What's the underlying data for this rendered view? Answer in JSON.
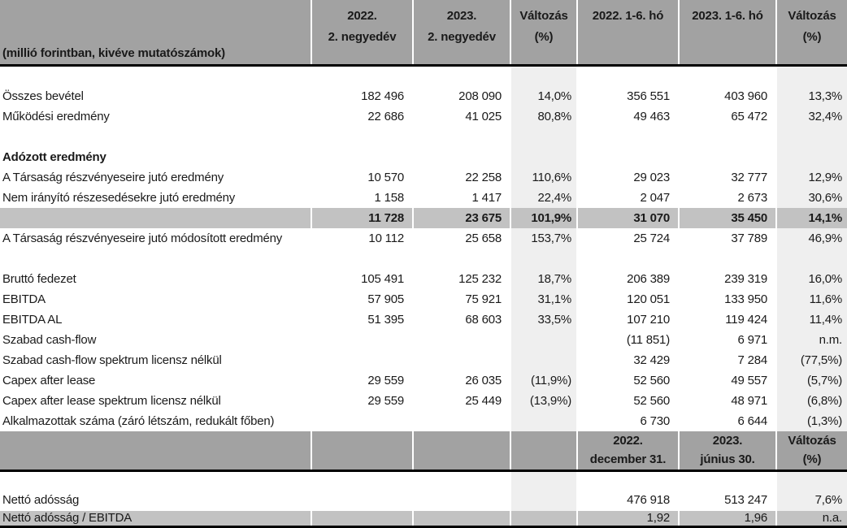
{
  "colors": {
    "header_gray": "#a2a2a2",
    "total_row_gray": "#c2c2c2",
    "stripe_gray": "#efefef",
    "border_black": "#000000",
    "text": "#1a1a1a",
    "background": "#ffffff"
  },
  "table": {
    "unit_note": "(millió forintban, kivéve mutatószámok)",
    "header1": [
      {
        "l1": "2022.",
        "l2": "2. negyedév"
      },
      {
        "l1": "2023.",
        "l2": "2. negyedév"
      },
      {
        "l1": "Változás",
        "l2": "(%)"
      },
      {
        "l1": "2022. 1-6. hó",
        "l2": ""
      },
      {
        "l1": "2023. 1-6. hó",
        "l2": ""
      },
      {
        "l1": "Változás",
        "l2": "(%)"
      }
    ],
    "header2": [
      {
        "l1": "2022.",
        "l2": "december 31."
      },
      {
        "l1": "2023.",
        "l2": "június 30."
      },
      {
        "l1": "Változás",
        "l2": "(%)"
      }
    ],
    "column_keys": [
      "q2-2022",
      "q2-2023",
      "change-q2",
      "h1-2022",
      "h1-2023",
      "change-h1"
    ],
    "section1_rows": [
      {
        "label": "",
        "style": "blank",
        "values": [
          "",
          "",
          "",
          "",
          "",
          ""
        ]
      },
      {
        "label": "Összes bevétel",
        "style": "normal",
        "values": [
          "182 496",
          "208 090",
          "14,0%",
          "356 551",
          "403 960",
          "13,3%"
        ]
      },
      {
        "label": "Működési eredmény",
        "style": "normal",
        "values": [
          "22 686",
          "41 025",
          "80,8%",
          "49 463",
          "65 472",
          "32,4%"
        ]
      },
      {
        "label": "",
        "style": "blank",
        "values": [
          "",
          "",
          "",
          "",
          "",
          ""
        ]
      },
      {
        "label": "Adózott eredmény",
        "style": "section",
        "values": [
          "",
          "",
          "",
          "",
          "",
          ""
        ]
      },
      {
        "label": "A Társaság részvényeseire jutó eredmény",
        "style": "normal",
        "values": [
          "10 570",
          "22 258",
          "110,6%",
          "29 023",
          "32 777",
          "12,9%"
        ]
      },
      {
        "label": "Nem irányító részesedésekre jutó eredmény",
        "style": "normal",
        "values": [
          "1 158",
          "1 417",
          "22,4%",
          "2 047",
          "2 673",
          "30,6%"
        ]
      },
      {
        "label": "",
        "style": "total-bold",
        "values": [
          "11 728",
          "23 675",
          "101,9%",
          "31 070",
          "35 450",
          "14,1%"
        ]
      },
      {
        "label": "A Társaság részvényeseire jutó módosított eredmény",
        "style": "normal",
        "values": [
          "10 112",
          "25 658",
          "153,7%",
          "25 724",
          "37 789",
          "46,9%"
        ]
      },
      {
        "label": "",
        "style": "blank",
        "values": [
          "",
          "",
          "",
          "",
          "",
          ""
        ]
      },
      {
        "label": "Bruttó fedezet",
        "style": "normal",
        "values": [
          "105 491",
          "125 232",
          "18,7%",
          "206 389",
          "239 319",
          "16,0%"
        ]
      },
      {
        "label": "EBITDA",
        "style": "normal",
        "values": [
          "57 905",
          "75 921",
          "31,1%",
          "120 051",
          "133 950",
          "11,6%"
        ]
      },
      {
        "label": "EBITDA AL",
        "style": "normal",
        "values": [
          "51 395",
          "68 603",
          "33,5%",
          "107 210",
          "119 424",
          "11,4%"
        ]
      },
      {
        "label": "Szabad cash-flow",
        "style": "normal",
        "values": [
          "",
          "",
          "",
          "(11 851)",
          "6 971",
          "n.m."
        ]
      },
      {
        "label": "Szabad cash-flow spektrum licensz nélkül",
        "style": "normal",
        "values": [
          "",
          "",
          "",
          "32 429",
          "7 284",
          "(77,5%)"
        ]
      },
      {
        "label": "Capex after lease",
        "style": "normal",
        "values": [
          "29 559",
          "26 035",
          "(11,9%)",
          "52 560",
          "49 557",
          "(5,7%)"
        ]
      },
      {
        "label": "Capex after lease spektrum licensz nélkül",
        "style": "normal",
        "values": [
          "29 559",
          "25 449",
          "(13,9%)",
          "52 560",
          "48 971",
          "(6,8%)"
        ]
      },
      {
        "label": "Alkalmazottak száma (záró létszám, redukált főben)",
        "style": "normal",
        "values": [
          "",
          "",
          "",
          "6 730",
          "6 644",
          "(1,3%)"
        ]
      }
    ],
    "section2_rows": [
      {
        "label": "",
        "style": "blank-s2",
        "values": [
          "",
          "",
          "",
          "",
          "",
          ""
        ]
      },
      {
        "label": "Nettó adósság",
        "style": "netto",
        "values": [
          "",
          "",
          "",
          "476 918",
          "513 247",
          "7,6%"
        ]
      },
      {
        "label": "Nettó adósság / EBITDA",
        "style": "total-last",
        "values": [
          "",
          "",
          "",
          "1,92",
          "1,96",
          "n.a."
        ]
      }
    ]
  }
}
